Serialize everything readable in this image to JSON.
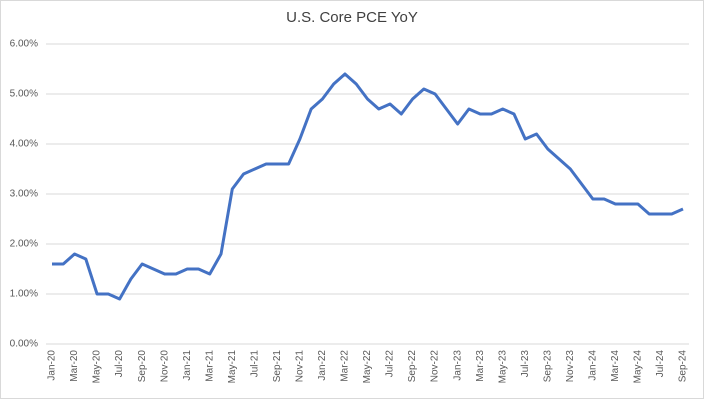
{
  "chart_data": {
    "type": "line",
    "title": "U.S. Core PCE YoY",
    "categories": [
      "Jan-20",
      null,
      "Mar-20",
      null,
      "May-20",
      null,
      "Jul-20",
      null,
      "Sep-20",
      null,
      "Nov-20",
      null,
      "Jan-21",
      null,
      "Mar-21",
      null,
      "May-21",
      null,
      "Jul-21",
      null,
      "Sep-21",
      null,
      "Nov-21",
      null,
      "Jan-22",
      null,
      "Mar-22",
      null,
      "May-22",
      null,
      "Jul-22",
      null,
      "Sep-22",
      null,
      "Nov-22",
      null,
      "Jan-23",
      null,
      "Mar-23",
      null,
      "May-23",
      null,
      "Jul-23",
      null,
      "Sep-23",
      null,
      "Nov-23",
      null,
      "Jan-24",
      null,
      "Mar-24",
      null,
      "May-24",
      null,
      "Jul-24",
      null,
      "Sep-24"
    ],
    "values": [
      1.6,
      1.6,
      1.8,
      1.7,
      1.0,
      1.0,
      0.9,
      1.3,
      1.6,
      1.5,
      1.4,
      1.4,
      1.5,
      1.5,
      1.4,
      1.8,
      3.1,
      3.4,
      3.5,
      3.6,
      3.6,
      3.6,
      4.1,
      4.7,
      4.9,
      5.2,
      5.4,
      5.2,
      4.9,
      4.7,
      4.8,
      4.6,
      4.9,
      5.1,
      5.0,
      4.7,
      4.4,
      4.7,
      4.6,
      4.6,
      4.7,
      4.6,
      4.1,
      4.2,
      3.9,
      3.7,
      3.5,
      3.2,
      2.9,
      2.9,
      2.8,
      2.8,
      2.8,
      2.6,
      2.6,
      2.6,
      2.7
    ],
    "color": "#4472c4",
    "ylim": [
      0,
      6
    ],
    "yticks": [
      {
        "value": 0,
        "label": "0.00%"
      },
      {
        "value": 1,
        "label": "1.00%"
      },
      {
        "value": 2,
        "label": "2.00%"
      },
      {
        "value": 3,
        "label": "3.00%"
      },
      {
        "value": 4,
        "label": "4.00%"
      },
      {
        "value": 5,
        "label": "5.00%"
      },
      {
        "value": 6,
        "label": "6.00%"
      }
    ],
    "grid": true
  }
}
